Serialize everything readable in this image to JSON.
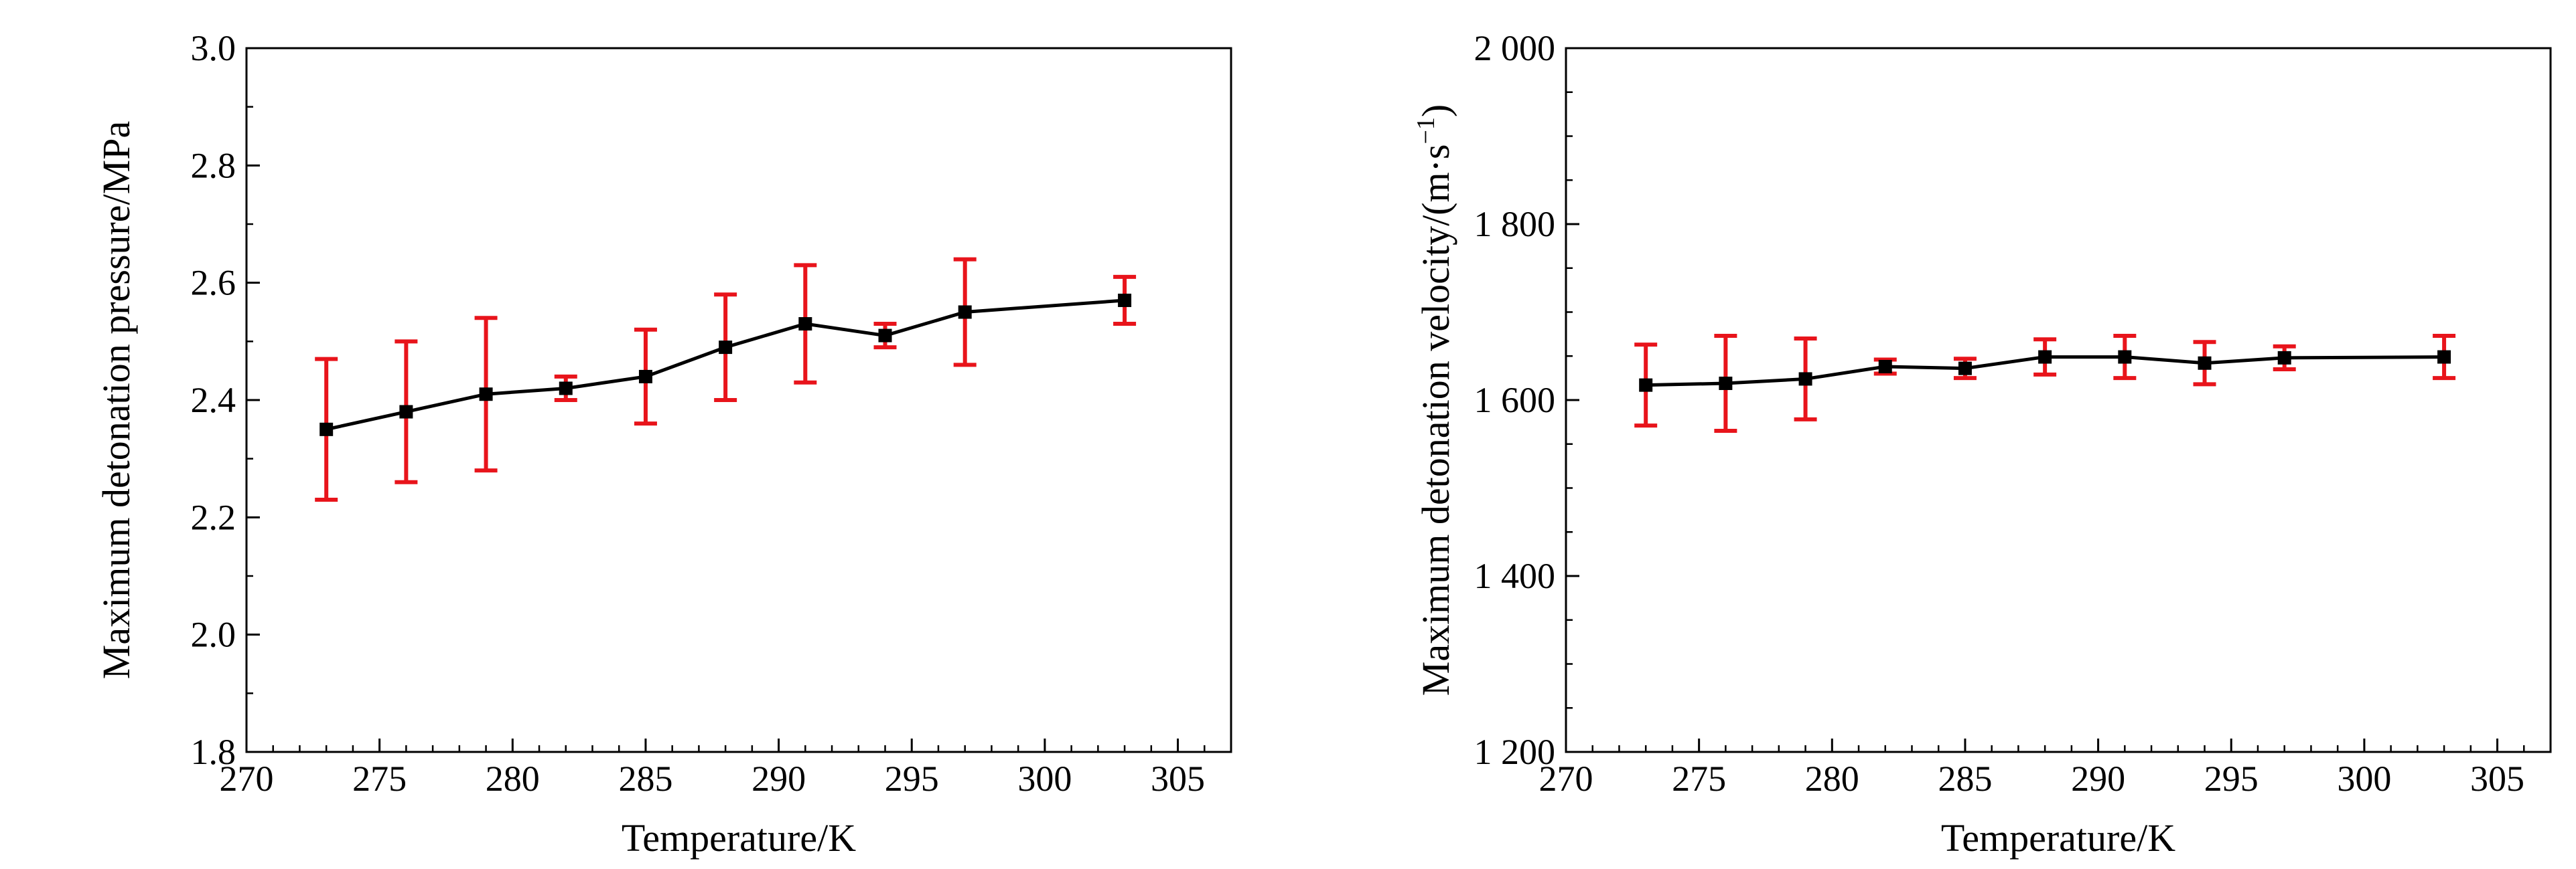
{
  "chart_data": [
    {
      "type": "line",
      "xlabel": "Temperature/K",
      "ylabel": "Maximum detonation pressure/MPa",
      "ylabel_sup": "",
      "ylabel_end": "",
      "xlim": [
        270,
        307
      ],
      "ylim": [
        1.8,
        3.0
      ],
      "xticks": [
        270,
        275,
        280,
        285,
        290,
        295,
        300,
        305
      ],
      "xtick_labels": [
        "270",
        "275",
        "280",
        "285",
        "290",
        "295",
        "300",
        "305"
      ],
      "yticks": [
        1.8,
        2.0,
        2.2,
        2.4,
        2.6,
        2.8,
        3.0
      ],
      "ytick_labels": [
        "1.8",
        "2.0",
        "2.2",
        "2.4",
        "2.6",
        "2.8",
        "3.0"
      ],
      "y_minor_step": 0.1,
      "grid": false,
      "line_color": "#000000",
      "errorbar_color": "#e8141b",
      "series": [
        {
          "x": [
            273,
            276,
            279,
            282,
            285,
            288,
            291,
            294,
            297,
            303
          ],
          "y": [
            2.35,
            2.38,
            2.41,
            2.42,
            2.44,
            2.49,
            2.53,
            2.51,
            2.55,
            2.57
          ],
          "err": [
            0.12,
            0.12,
            0.13,
            0.02,
            0.08,
            0.09,
            0.1,
            0.02,
            0.09,
            0.04
          ]
        }
      ]
    },
    {
      "type": "line",
      "xlabel": "Temperature/K",
      "ylabel": "Maximum detonation velocity/(m·s",
      "ylabel_sup": "−1",
      "ylabel_end": ")",
      "xlim": [
        270,
        307
      ],
      "ylim": [
        1200,
        2000
      ],
      "xticks": [
        270,
        275,
        280,
        285,
        290,
        295,
        300,
        305
      ],
      "xtick_labels": [
        "270",
        "275",
        "280",
        "285",
        "290",
        "295",
        "300",
        "305"
      ],
      "yticks": [
        1200,
        1400,
        1600,
        1800,
        2000
      ],
      "ytick_labels": [
        "1 200",
        "1 400",
        "1 600",
        "1 800",
        "2 000"
      ],
      "y_minor_step": 50,
      "grid": false,
      "line_color": "#000000",
      "errorbar_color": "#e8141b",
      "series": [
        {
          "x": [
            273,
            276,
            279,
            282,
            285,
            288,
            291,
            294,
            297,
            303
          ],
          "y": [
            1617,
            1619,
            1624,
            1638,
            1636,
            1649,
            1649,
            1642,
            1648,
            1649
          ],
          "err": [
            46,
            54,
            46,
            8,
            11,
            20,
            24,
            24,
            13,
            24
          ]
        }
      ]
    }
  ]
}
